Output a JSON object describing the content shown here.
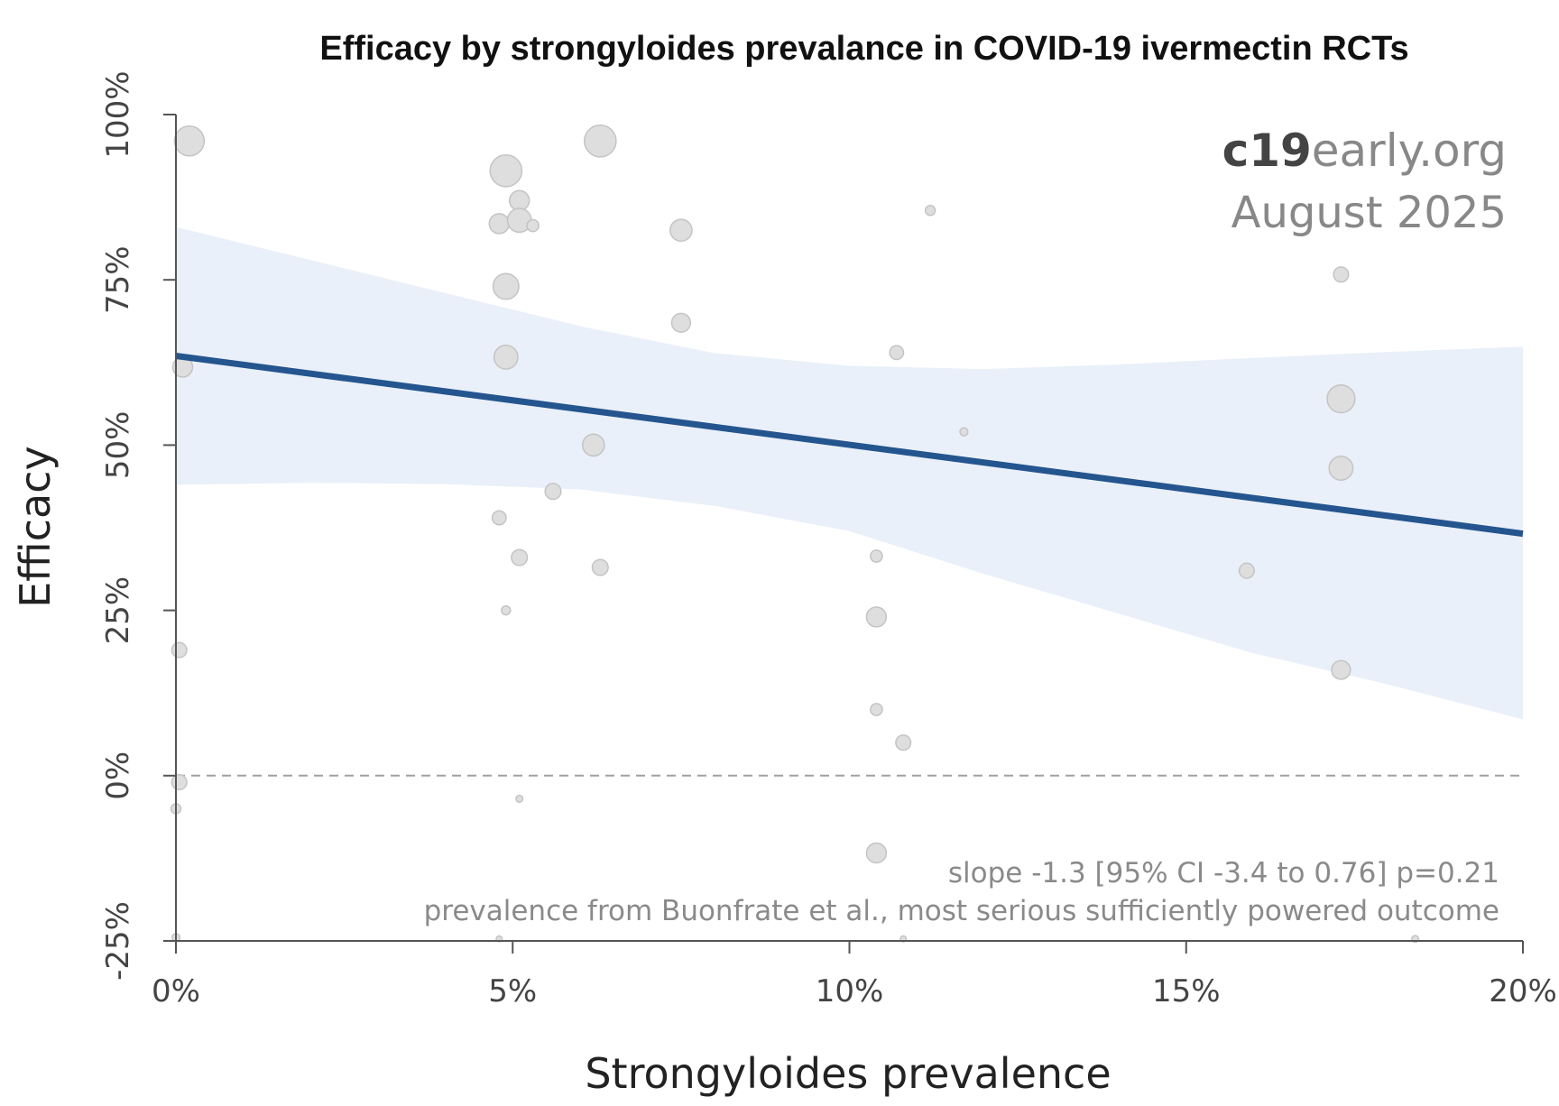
{
  "watermark": {
    "brand_bold": "c19",
    "brand_rest": "early",
    "brand_suffix": ".org",
    "date": "August 2025"
  },
  "notes": [
    "slope -1.3 [95% CI -3.4 to 0.76] p=0.21",
    "prevalence from Buonfrate et al., most serious sufficiently powered outcome"
  ],
  "colors": {
    "trend_line": "#24558f",
    "ci_band": "#eaf0f9",
    "points_fill": "#dedede",
    "points_stroke": "#c4c4c4",
    "reference_line": "#a0a0a0",
    "axis": "#555555"
  },
  "chart_data": {
    "type": "scatter",
    "title": "Efficacy by strongyloides prevalance in COVID-19 ivermectin RCTs",
    "xlabel": "Strongyloides prevalence",
    "ylabel": "Efficacy",
    "xlim": [
      0,
      20
    ],
    "ylim": [
      -25,
      100
    ],
    "x_unit": "%",
    "y_unit": "%",
    "x_ticks": [
      0,
      5,
      10,
      15,
      20
    ],
    "x_tick_labels": [
      "0%",
      "5%",
      "10%",
      "15%",
      "20%"
    ],
    "y_ticks": [
      -25,
      0,
      25,
      50,
      75,
      100
    ],
    "y_tick_labels": [
      "-25%",
      "0%",
      "25%",
      "50%",
      "75%",
      "100%"
    ],
    "reference_line_y": 0,
    "grid": false,
    "regression": {
      "intercept": 63.5,
      "end_value": 36.6,
      "ci": [
        {
          "x": 0,
          "lower": 44,
          "upper": 83
        },
        {
          "x": 2,
          "lower": 44.3,
          "upper": 78
        },
        {
          "x": 4,
          "lower": 44.1,
          "upper": 73
        },
        {
          "x": 6,
          "lower": 43.3,
          "upper": 68
        },
        {
          "x": 8,
          "lower": 40.8,
          "upper": 63.9
        },
        {
          "x": 10,
          "lower": 37,
          "upper": 62
        },
        {
          "x": 12,
          "lower": 30.5,
          "upper": 61.5
        },
        {
          "x": 14,
          "lower": 24.5,
          "upper": 62.2
        },
        {
          "x": 16,
          "lower": 18.5,
          "upper": 63.2
        },
        {
          "x": 18,
          "lower": 13.8,
          "upper": 64.1
        },
        {
          "x": 20,
          "lower": 8.5,
          "upper": 64.9
        }
      ]
    },
    "points": [
      {
        "x": 0.2,
        "y": 96,
        "size": 3
      },
      {
        "x": 0.1,
        "y": 61.8,
        "size": 2
      },
      {
        "x": 0.05,
        "y": 19,
        "size": 1.5
      },
      {
        "x": 0.05,
        "y": -1,
        "size": 1.5
      },
      {
        "x": 0.0,
        "y": -5,
        "size": 1
      },
      {
        "x": 0.0,
        "y": -24.5,
        "size": 0.8
      },
      {
        "x": 4.9,
        "y": 91.5,
        "size": 3.2
      },
      {
        "x": 5.1,
        "y": 87,
        "size": 2
      },
      {
        "x": 4.8,
        "y": 83.5,
        "size": 2
      },
      {
        "x": 5.1,
        "y": 84,
        "size": 2.4
      },
      {
        "x": 5.3,
        "y": 83.2,
        "size": 1.2
      },
      {
        "x": 4.9,
        "y": 74,
        "size": 2.6
      },
      {
        "x": 4.9,
        "y": 63.3,
        "size": 2.4
      },
      {
        "x": 6.3,
        "y": 96,
        "size": 3.2
      },
      {
        "x": 7.5,
        "y": 82.5,
        "size": 2.2
      },
      {
        "x": 7.5,
        "y": 68.5,
        "size": 1.9
      },
      {
        "x": 6.2,
        "y": 50,
        "size": 2.2
      },
      {
        "x": 5.6,
        "y": 43,
        "size": 1.6
      },
      {
        "x": 4.8,
        "y": 39,
        "size": 1.4
      },
      {
        "x": 5.1,
        "y": 33,
        "size": 1.6
      },
      {
        "x": 6.3,
        "y": 31.5,
        "size": 1.6
      },
      {
        "x": 4.9,
        "y": 25,
        "size": 0.9
      },
      {
        "x": 5.1,
        "y": -3.5,
        "size": 0.7
      },
      {
        "x": 4.8,
        "y": -24.7,
        "size": 0.6
      },
      {
        "x": 11.2,
        "y": 85.5,
        "size": 1
      },
      {
        "x": 10.7,
        "y": 64,
        "size": 1.4
      },
      {
        "x": 11.7,
        "y": 52,
        "size": 0.8
      },
      {
        "x": 10.4,
        "y": 33.2,
        "size": 1.2
      },
      {
        "x": 10.4,
        "y": 24,
        "size": 2
      },
      {
        "x": 10.4,
        "y": 10,
        "size": 1.2
      },
      {
        "x": 10.8,
        "y": 5,
        "size": 1.5
      },
      {
        "x": 10.4,
        "y": -11.7,
        "size": 2
      },
      {
        "x": 10.8,
        "y": -24.7,
        "size": 0.6
      },
      {
        "x": 17.3,
        "y": 75.8,
        "size": 1.5
      },
      {
        "x": 17.3,
        "y": 57,
        "size": 2.8
      },
      {
        "x": 17.3,
        "y": 46.5,
        "size": 2.4
      },
      {
        "x": 15.9,
        "y": 31,
        "size": 1.5
      },
      {
        "x": 17.3,
        "y": 16,
        "size": 1.9
      },
      {
        "x": 18.4,
        "y": -24.7,
        "size": 0.7
      }
    ]
  }
}
